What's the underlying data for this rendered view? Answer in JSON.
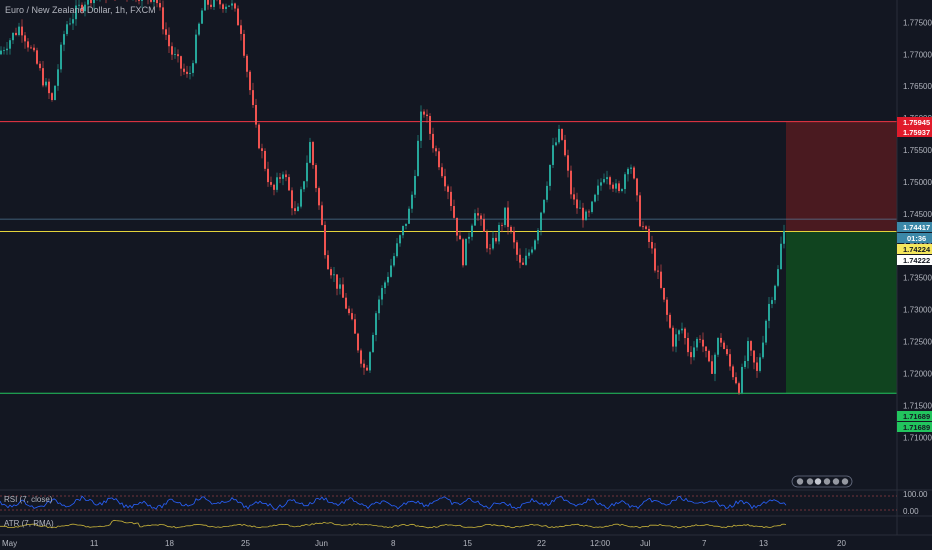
{
  "header": {
    "title": "Euro / New Zealand Dollar, 1h, FXCM"
  },
  "colors": {
    "background": "#131722",
    "up": "#26a69a",
    "down": "#ef5350",
    "resistance": "#f23645",
    "support": "#22c55e",
    "entry": "#e3d33b",
    "current": "#5b8fb0",
    "rsi": "#2962ff",
    "atr": "#c9b43a",
    "stop_zone": "#4a1a20",
    "target_zone": "#10441f"
  },
  "price_labels": {
    "stop_upper": "1.75945",
    "stop_lower": "1.75937",
    "current": "1.74417",
    "countdown": "01:36",
    "entry": "1.74224",
    "entry_lower": "1.74222",
    "target_upper": "1.71689",
    "target_lower": "1.71689"
  },
  "indicators": {
    "rsi": {
      "label": "RSI (7, close)",
      "ticks": [
        "100.00",
        "0.00"
      ]
    },
    "atr": {
      "label": "ATR (7, RMA)"
    }
  },
  "chart_data": {
    "type": "candlestick",
    "title": "Euro / New Zealand Dollar, 1h, FXCM",
    "ylim": [
      1.7055,
      1.7785
    ],
    "y_ticks": [
      1.775,
      1.77,
      1.765,
      1.76,
      1.755,
      1.75,
      1.745,
      1.74,
      1.735,
      1.73,
      1.725,
      1.72,
      1.715,
      1.71
    ],
    "y_tick_labels": [
      "1.77500",
      "1.77000",
      "1.76500",
      "1.76000",
      "1.75500",
      "1.75000",
      "1.74500",
      "1.74000",
      "1.73500",
      "1.73000",
      "1.72500",
      "1.72000",
      "1.71500",
      "1.71000"
    ],
    "x_tick_labels": [
      "May",
      "11",
      "18",
      "25",
      "Jun",
      "8",
      "15",
      "22",
      "12:00",
      "Jul",
      "7",
      "13",
      "20"
    ],
    "anchors": [
      {
        "t": 0.0,
        "p": 1.77
      },
      {
        "t": 1.5,
        "p": 1.7745
      },
      {
        "t": 2.5,
        "p": 1.769
      },
      {
        "t": 3.6,
        "p": 1.7625
      },
      {
        "t": 4.5,
        "p": 1.7745
      },
      {
        "t": 6.0,
        "p": 1.779
      },
      {
        "t": 8.0,
        "p": 1.78
      },
      {
        "t": 10.5,
        "p": 1.779
      },
      {
        "t": 11.5,
        "p": 1.7705
      },
      {
        "t": 12.7,
        "p": 1.766
      },
      {
        "t": 13.7,
        "p": 1.778
      },
      {
        "t": 15.5,
        "p": 1.778
      },
      {
        "t": 16.2,
        "p": 1.774
      },
      {
        "t": 17.2,
        "p": 1.758
      },
      {
        "t": 18.3,
        "p": 1.748
      },
      {
        "t": 19.0,
        "p": 1.752
      },
      {
        "t": 19.9,
        "p": 1.744
      },
      {
        "t": 20.8,
        "p": 1.756
      },
      {
        "t": 21.9,
        "p": 1.738
      },
      {
        "t": 23.3,
        "p": 1.73
      },
      {
        "t": 24.5,
        "p": 1.72
      },
      {
        "t": 25.3,
        "p": 1.731
      },
      {
        "t": 26.2,
        "p": 1.737
      },
      {
        "t": 27.5,
        "p": 1.746
      },
      {
        "t": 28.3,
        "p": 1.762
      },
      {
        "t": 29.0,
        "p": 1.756
      },
      {
        "t": 30.0,
        "p": 1.749
      },
      {
        "t": 31.0,
        "p": 1.738
      },
      {
        "t": 31.8,
        "p": 1.746
      },
      {
        "t": 32.8,
        "p": 1.739
      },
      {
        "t": 33.8,
        "p": 1.745
      },
      {
        "t": 34.9,
        "p": 1.736
      },
      {
        "t": 35.9,
        "p": 1.742
      },
      {
        "t": 37.0,
        "p": 1.755
      },
      {
        "t": 37.5,
        "p": 1.758
      },
      {
        "t": 38.3,
        "p": 1.747
      },
      {
        "t": 39.3,
        "p": 1.744
      },
      {
        "t": 40.5,
        "p": 1.752
      },
      {
        "t": 41.4,
        "p": 1.748
      },
      {
        "t": 42.1,
        "p": 1.754
      },
      {
        "t": 42.8,
        "p": 1.744
      },
      {
        "t": 43.5,
        "p": 1.74
      },
      {
        "t": 44.3,
        "p": 1.732
      },
      {
        "t": 45.0,
        "p": 1.725
      },
      {
        "t": 45.6,
        "p": 1.727
      },
      {
        "t": 46.1,
        "p": 1.723
      },
      {
        "t": 46.8,
        "p": 1.726
      },
      {
        "t": 47.5,
        "p": 1.72
      },
      {
        "t": 48.1,
        "p": 1.726
      },
      {
        "t": 48.8,
        "p": 1.721
      },
      {
        "t": 49.4,
        "p": 1.718
      },
      {
        "t": 50.0,
        "p": 1.724
      },
      {
        "t": 50.6,
        "p": 1.72
      },
      {
        "t": 51.3,
        "p": 1.73
      },
      {
        "t": 52.0,
        "p": 1.736
      },
      {
        "t": 52.3,
        "p": 1.742
      }
    ],
    "trade_levels": {
      "stop": 1.75945,
      "current": 1.74417,
      "entry": 1.74224,
      "target": 1.71689
    }
  }
}
